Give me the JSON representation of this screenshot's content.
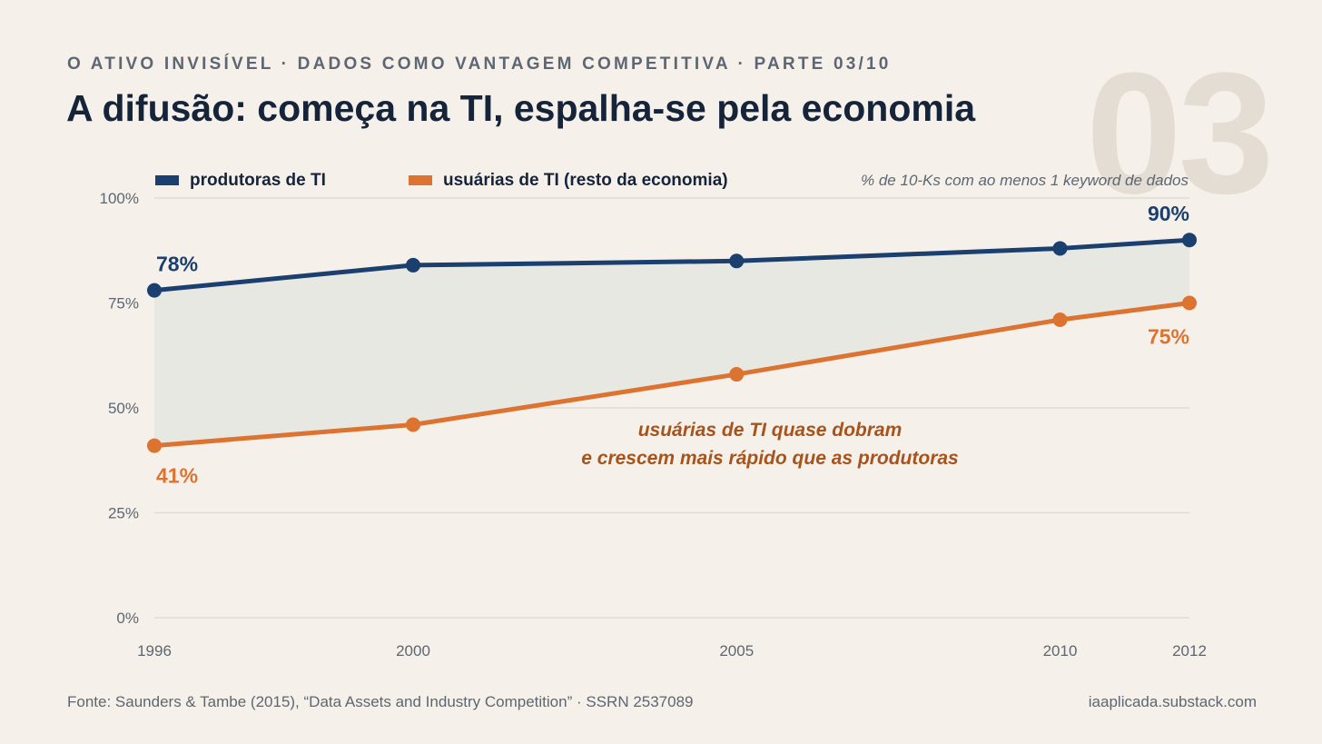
{
  "header": {
    "kicker": "O ATIVO INVISÍVEL · DADOS COMO VANTAGEM COMPETITIVA · PARTE 03/10",
    "title": "A difusão: começa na TI, espalha-se pela economia",
    "part_number": "03"
  },
  "footer": {
    "source": "Fonte: Saunders & Tambe (2015), “Data Assets and Industry Competition” · SSRN 2537089",
    "site": "iaaplicada.substack.com"
  },
  "colors": {
    "producers": "#1b3f6e",
    "users": "#dd7331",
    "annotation": "#a8531c",
    "gap_fill": "#e8e8e3",
    "grid": "#e0dccf",
    "axis_text": "#5d6672"
  },
  "chart_data": {
    "type": "line",
    "x": [
      1996,
      2000,
      2005,
      2010,
      2012
    ],
    "xlim": [
      1996,
      2012
    ],
    "ylim": [
      0,
      100
    ],
    "yticks": [
      0,
      25,
      50,
      75,
      100
    ],
    "ytick_labels": [
      "0%",
      "25%",
      "50%",
      "75%",
      "100%"
    ],
    "xtick_labels": [
      "1996",
      "2000",
      "2005",
      "2010",
      "2012"
    ],
    "unit_note": "% de 10-Ks com ao menos 1 keyword de dados",
    "grid": true,
    "legend_position": "top-left",
    "series": [
      {
        "name": "produtoras de TI",
        "values": [
          78,
          84,
          85,
          88,
          90
        ],
        "start_label": "78%",
        "end_label": "90%"
      },
      {
        "name": "usuárias de TI (resto da economia)",
        "values": [
          41,
          46,
          58,
          71,
          75
        ],
        "start_label": "41%",
        "end_label": "75%"
      }
    ],
    "annotation": {
      "lines": [
        "usuárias de TI quase dobram",
        "e crescem mais rápido que as produtoras"
      ]
    }
  }
}
